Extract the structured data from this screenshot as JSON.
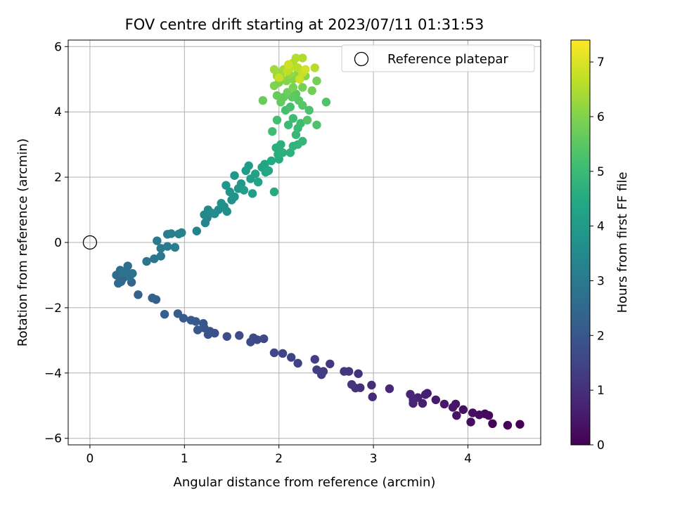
{
  "chart_data": {
    "type": "scatter",
    "title": "FOV centre drift starting at 2023/07/11 01:31:53",
    "xlabel": "Angular distance from reference (arcmin)",
    "ylabel": "Rotation from reference (arcmin)",
    "xlim": [
      -0.23,
      4.77
    ],
    "ylim": [
      -6.2,
      6.2
    ],
    "xticks": [
      0,
      1,
      2,
      3,
      4
    ],
    "xtick_labels": [
      "0",
      "1",
      "2",
      "3",
      "4"
    ],
    "yticks": [
      -6,
      -4,
      -2,
      0,
      2,
      4,
      6
    ],
    "ytick_labels": [
      "−6",
      "−4",
      "−2",
      "0",
      "2",
      "4",
      "6"
    ],
    "grid": true,
    "legend": {
      "position": "top-right",
      "entries": [
        {
          "label": "Reference platepar",
          "marker": "open-circle"
        }
      ]
    },
    "reference_point": {
      "x": 0,
      "y": 0
    },
    "colorbar": {
      "label": "Hours from first FF file",
      "range": [
        0,
        7.4
      ],
      "ticks": [
        0,
        1,
        2,
        3,
        4,
        5,
        6,
        7
      ],
      "tick_labels": [
        "0",
        "1",
        "2",
        "3",
        "4",
        "5",
        "6",
        "7"
      ],
      "colormap": "viridis"
    },
    "series": [
      {
        "points": [
          [
            4.55,
            -5.57,
            0.02
          ],
          [
            4.42,
            -5.6,
            0.06
          ],
          [
            4.26,
            -5.55,
            0.1
          ],
          [
            4.22,
            -5.3,
            0.14
          ],
          [
            4.18,
            -5.25,
            0.18
          ],
          [
            4.12,
            -5.28,
            0.22
          ],
          [
            4.03,
            -5.5,
            0.26
          ],
          [
            4.05,
            -5.22,
            0.3
          ],
          [
            3.95,
            -5.12,
            0.34
          ],
          [
            3.88,
            -5.3,
            0.38
          ],
          [
            3.87,
            -4.95,
            0.42
          ],
          [
            3.84,
            -5.05,
            0.46
          ],
          [
            3.75,
            -4.95,
            0.5
          ],
          [
            3.66,
            -4.82,
            0.54
          ],
          [
            3.57,
            -4.62,
            0.58
          ],
          [
            3.52,
            -4.93,
            0.62
          ],
          [
            3.55,
            -4.66,
            0.66
          ],
          [
            3.47,
            -4.75,
            0.7
          ],
          [
            3.42,
            -4.93,
            0.74
          ],
          [
            3.39,
            -4.65,
            0.78
          ],
          [
            3.42,
            -4.82,
            0.82
          ],
          [
            3.17,
            -4.48,
            0.86
          ],
          [
            2.99,
            -4.73,
            0.9
          ],
          [
            2.98,
            -4.37,
            0.94
          ],
          [
            2.86,
            -4.45,
            0.98
          ],
          [
            2.84,
            -4.02,
            1.02
          ],
          [
            2.81,
            -4.46,
            1.06
          ],
          [
            2.77,
            -4.35,
            1.1
          ],
          [
            2.74,
            -3.95,
            1.14
          ],
          [
            2.69,
            -3.95,
            1.18
          ],
          [
            2.54,
            -3.72,
            1.22
          ],
          [
            2.45,
            -4.05,
            1.26
          ],
          [
            2.47,
            -3.95,
            1.3
          ],
          [
            2.4,
            -3.9,
            1.34
          ],
          [
            2.38,
            -3.58,
            1.38
          ],
          [
            2.2,
            -3.7,
            1.42
          ],
          [
            2.13,
            -3.52,
            1.46
          ],
          [
            2.04,
            -3.4,
            1.5
          ],
          [
            1.95,
            -3.38,
            1.54
          ],
          [
            1.84,
            -2.95,
            1.58
          ],
          [
            1.77,
            -2.98,
            1.62
          ],
          [
            1.73,
            -2.92,
            1.66
          ],
          [
            1.7,
            -3.05,
            1.7
          ],
          [
            1.58,
            -2.85,
            1.74
          ],
          [
            1.45,
            -2.88,
            1.78
          ],
          [
            1.32,
            -2.78,
            1.82
          ],
          [
            1.27,
            -2.72,
            1.86
          ],
          [
            1.25,
            -2.82,
            1.9
          ],
          [
            1.21,
            -2.62,
            1.94
          ],
          [
            1.2,
            -2.48,
            1.98
          ],
          [
            1.14,
            -2.68,
            2.02
          ],
          [
            1.12,
            -2.42,
            2.06
          ],
          [
            1.07,
            -2.38,
            2.1
          ],
          [
            0.99,
            -2.32,
            2.14
          ],
          [
            0.93,
            -2.18,
            2.18
          ],
          [
            0.79,
            -2.2,
            2.22
          ],
          [
            0.7,
            -1.75,
            2.26
          ],
          [
            0.66,
            -1.7,
            2.3
          ],
          [
            0.51,
            -1.6,
            2.34
          ],
          [
            0.44,
            -1.22,
            2.38
          ],
          [
            0.4,
            -1.0,
            2.42
          ],
          [
            0.35,
            -1.1,
            2.46
          ],
          [
            0.33,
            -1.2,
            2.5
          ],
          [
            0.3,
            -1.25,
            2.54
          ],
          [
            0.28,
            -1.0,
            2.58
          ],
          [
            0.32,
            -0.85,
            2.62
          ],
          [
            0.4,
            -0.72,
            2.66
          ],
          [
            0.38,
            -0.9,
            2.7
          ],
          [
            0.42,
            -1.05,
            2.74
          ],
          [
            0.45,
            -0.95,
            2.78
          ],
          [
            0.35,
            -0.92,
            2.82
          ],
          [
            0.6,
            -0.58,
            2.86
          ],
          [
            0.68,
            -0.5,
            2.9
          ],
          [
            0.75,
            -0.42,
            2.94
          ],
          [
            0.75,
            -0.18,
            2.98
          ],
          [
            0.71,
            0.05,
            3.02
          ],
          [
            0.82,
            -0.12,
            3.06
          ],
          [
            0.9,
            -0.15,
            3.1
          ],
          [
            0.82,
            0.25,
            3.14
          ],
          [
            0.86,
            0.27,
            3.18
          ],
          [
            0.94,
            0.26,
            3.22
          ],
          [
            0.97,
            0.3,
            3.26
          ],
          [
            1.13,
            0.35,
            3.3
          ],
          [
            1.22,
            0.6,
            3.34
          ],
          [
            1.24,
            0.75,
            3.38
          ],
          [
            1.21,
            0.85,
            3.42
          ],
          [
            1.25,
            1.0,
            3.46
          ],
          [
            1.29,
            0.9,
            3.5
          ],
          [
            1.32,
            0.88,
            3.54
          ],
          [
            1.36,
            1.0,
            3.58
          ],
          [
            1.42,
            1.1,
            3.62
          ],
          [
            1.45,
            0.95,
            3.66
          ],
          [
            1.39,
            1.2,
            3.7
          ],
          [
            1.5,
            1.3,
            3.74
          ],
          [
            1.53,
            1.4,
            3.78
          ],
          [
            1.48,
            1.55,
            3.82
          ],
          [
            1.44,
            1.75,
            3.86
          ],
          [
            1.57,
            1.65,
            3.9
          ],
          [
            1.53,
            2.05,
            3.94
          ],
          [
            1.6,
            1.8,
            3.98
          ],
          [
            1.65,
            2.2,
            4.02
          ],
          [
            1.68,
            2.35,
            4.06
          ],
          [
            1.72,
            1.5,
            4.1
          ],
          [
            1.63,
            1.6,
            4.14
          ],
          [
            1.7,
            1.95,
            4.18
          ],
          [
            1.75,
            2.1,
            4.22
          ],
          [
            1.78,
            1.85,
            4.26
          ],
          [
            1.82,
            2.3,
            4.3
          ],
          [
            1.85,
            2.4,
            4.34
          ],
          [
            1.89,
            2.2,
            4.38
          ],
          [
            1.86,
            2.15,
            4.42
          ],
          [
            1.92,
            2.5,
            4.46
          ],
          [
            1.95,
            1.55,
            4.5
          ],
          [
            2.0,
            2.55,
            4.54
          ],
          [
            1.99,
            2.7,
            4.58
          ],
          [
            1.97,
            2.9,
            4.62
          ],
          [
            2.02,
            3.0,
            4.66
          ],
          [
            2.04,
            2.75,
            4.7
          ],
          [
            2.12,
            2.75,
            4.74
          ],
          [
            2.15,
            2.95,
            4.78
          ],
          [
            2.2,
            3.0,
            4.82
          ],
          [
            2.25,
            3.1,
            4.86
          ],
          [
            2.18,
            3.3,
            4.9
          ],
          [
            2.2,
            3.5,
            4.94
          ],
          [
            2.1,
            3.6,
            4.98
          ],
          [
            2.15,
            3.8,
            5.02
          ],
          [
            2.23,
            3.65,
            5.06
          ],
          [
            1.93,
            3.4,
            5.1
          ],
          [
            1.98,
            3.75,
            5.14
          ],
          [
            2.07,
            4.05,
            5.18
          ],
          [
            2.12,
            4.15,
            5.22
          ],
          [
            2.32,
            4.05,
            5.26
          ],
          [
            2.4,
            3.6,
            5.3
          ],
          [
            2.5,
            4.3,
            5.34
          ],
          [
            2.3,
            3.75,
            5.38
          ],
          [
            2.25,
            4.2,
            5.42
          ],
          [
            2.21,
            4.35,
            5.46
          ],
          [
            2.18,
            4.55,
            5.5
          ],
          [
            2.14,
            4.45,
            5.54
          ],
          [
            2.05,
            4.45,
            5.58
          ],
          [
            2.02,
            4.3,
            5.62
          ],
          [
            1.98,
            4.5,
            5.66
          ],
          [
            1.83,
            4.35,
            5.7
          ],
          [
            2.09,
            4.6,
            5.74
          ],
          [
            2.35,
            4.65,
            5.78
          ],
          [
            2.4,
            4.95,
            5.82
          ],
          [
            2.25,
            4.75,
            5.86
          ],
          [
            2.15,
            4.75,
            5.9
          ],
          [
            2.0,
            4.9,
            5.94
          ],
          [
            1.95,
            4.8,
            5.98
          ],
          [
            2.08,
            4.95,
            6.02
          ],
          [
            2.15,
            5.0,
            6.06
          ],
          [
            2.28,
            5.1,
            6.1
          ],
          [
            2.2,
            5.2,
            6.14
          ],
          [
            2.11,
            5.15,
            6.18
          ],
          [
            2.04,
            5.25,
            6.22
          ],
          [
            2.02,
            5.05,
            6.26
          ],
          [
            1.98,
            5.1,
            6.3
          ],
          [
            1.95,
            5.3,
            6.34
          ],
          [
            2.05,
            5.3,
            6.38
          ],
          [
            2.1,
            5.4,
            6.42
          ],
          [
            2.15,
            5.5,
            6.46
          ],
          [
            2.25,
            5.65,
            6.5
          ],
          [
            2.18,
            5.65,
            6.54
          ],
          [
            2.38,
            5.35,
            6.58
          ],
          [
            2.2,
            5.35,
            6.62
          ],
          [
            2.12,
            5.35,
            6.66
          ],
          [
            2.09,
            5.25,
            6.7
          ],
          [
            2.25,
            5.2,
            6.74
          ],
          [
            2.0,
            5.05,
            6.78
          ],
          [
            2.22,
            5.0,
            6.82
          ],
          [
            2.1,
            5.45,
            6.86
          ],
          [
            2.28,
            5.3,
            6.9
          ]
        ]
      }
    ]
  }
}
